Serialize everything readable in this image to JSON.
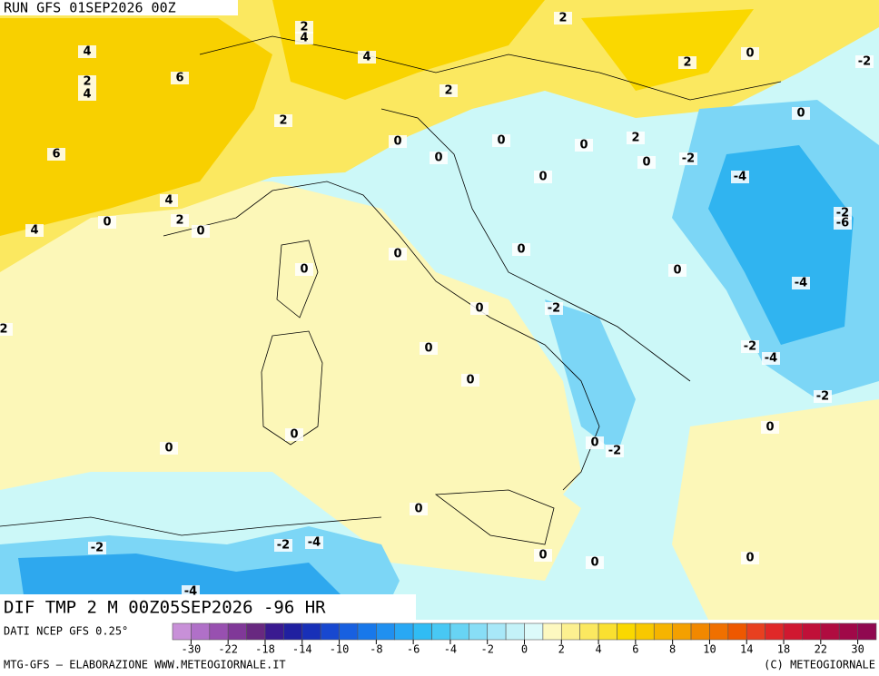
{
  "header": {
    "title": "RUN GFS 01SEP2026 00Z"
  },
  "map": {
    "contour_labels": [
      "2",
      "4",
      "4",
      "6",
      "2",
      "4",
      "4",
      "2",
      "2",
      "0",
      "-2",
      "2",
      "2",
      "0",
      "6",
      "0",
      "0",
      "0",
      "0",
      "2",
      "0",
      "-2",
      "0",
      "-4",
      "4",
      "2",
      "0",
      "0",
      "4",
      "-2",
      "-6",
      "0",
      "0",
      "0",
      "0",
      "-4",
      "0",
      "-2",
      "2",
      "0",
      "-2",
      "-4",
      "0",
      "-2",
      "0",
      "0",
      "0",
      "0",
      "-2",
      "0",
      "-2",
      "-2",
      "-4",
      "0",
      "0",
      "0",
      "-4"
    ]
  },
  "footer": {
    "product": "DIF TMP 2 M 00Z05SEP2026 -96 HR",
    "source": "DATI NCEP GFS 0.25°",
    "credit": "MTG-GFS – ELABORAZIONE WWW.METEOGIORNALE.IT",
    "copyright": "(C) METEOGIORNALE"
  },
  "colorbar": {
    "colors": [
      "#c890d8",
      "#b070c8",
      "#9850b0",
      "#803898",
      "#682880",
      "#3a1a90",
      "#2020a0",
      "#1830b8",
      "#1848d0",
      "#1860e0",
      "#1878ea",
      "#2090f0",
      "#28a8f4",
      "#30bcf4",
      "#48c8f4",
      "#68d4f4",
      "#88def6",
      "#a8e8f8",
      "#c4f2f8",
      "#dcfafa",
      "#fdf8c0",
      "#fcf090",
      "#fbe860",
      "#fae030",
      "#fad800",
      "#f8c800",
      "#f6b400",
      "#f4a000",
      "#f28800",
      "#f07000",
      "#ee5800",
      "#e84020",
      "#e02828",
      "#d01830",
      "#c01038",
      "#b00c40",
      "#a00848",
      "#900850"
    ],
    "labels": [
      "-30",
      "-22",
      "-18",
      "-14",
      "-10",
      "-8",
      "-6",
      "-4",
      "-2",
      "0",
      "2",
      "4",
      "6",
      "8",
      "10",
      "14",
      "18",
      "22",
      "30"
    ]
  }
}
